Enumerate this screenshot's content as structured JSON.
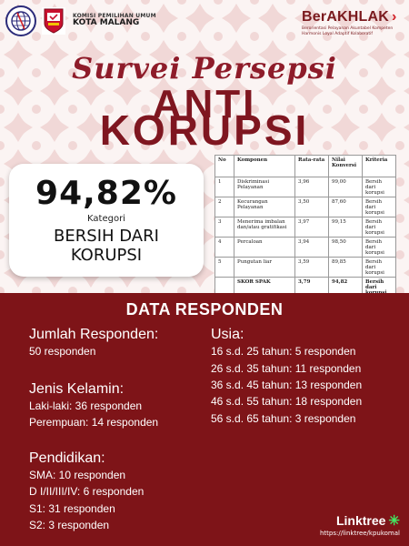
{
  "header": {
    "org_line1": "KOMISI PEMILIHAN UMUM",
    "org_line2": "KOTA MALANG",
    "brand": "BerAKHLAK",
    "brand_sub_line1": "Berorientasi Pelayanan Akuntabel Kompeten",
    "brand_sub_line2": "Harmonis Loyal Adaptif Kolaboratif",
    "icons": [
      "globe-logo-icon",
      "kpu-logo-icon",
      "chevron-right-icon"
    ]
  },
  "title": {
    "script": "Survei Persepsi",
    "line1": "ANTI",
    "line2": "KORUPSI"
  },
  "score": {
    "value": "94,82%",
    "category_label": "Kategori",
    "result_line1": "BERSIH DARI",
    "result_line2": "KORUPSI"
  },
  "table": {
    "headers": [
      "No",
      "Komponen",
      "Rata-rata",
      "Nilai Konversi",
      "Kriteria"
    ],
    "rows": [
      {
        "no": "1",
        "komponen": "Diskriminasi Pelayanan",
        "rata": "3,96",
        "nilai": "99,00",
        "kriteria": "Bersih dari korupsi"
      },
      {
        "no": "2",
        "komponen": "Kecurangan Pelayanan",
        "rata": "3,50",
        "nilai": "87,60",
        "kriteria": "Bersih dari korupsi"
      },
      {
        "no": "3",
        "komponen": "Menerima imbalan dan/atau gratifikasi",
        "rata": "3,97",
        "nilai": "99,15",
        "kriteria": "Bersih dari korupsi"
      },
      {
        "no": "4",
        "komponen": "Percaloan",
        "rata": "3,94",
        "nilai": "98,50",
        "kriteria": "Bersih dari korupsi"
      },
      {
        "no": "5",
        "komponen": "Pungutan liar",
        "rata": "3,59",
        "nilai": "89,85",
        "kriteria": "Bersih dari korupsi"
      }
    ],
    "total": {
      "label": "SKOR SPAK",
      "rata": "3,79",
      "nilai": "94,82",
      "kriteria": "Bersih dari korupsi"
    }
  },
  "responden": {
    "title": "DATA RESPONDEN",
    "jumlah_head": "Jumlah Responden",
    "jumlah_colon": ":",
    "jumlah_value": "50 responden",
    "kelamin_head": "Jenis Kelamin:",
    "kelamin_items": [
      "Laki-laki: 36 responden",
      "Perempuan: 14 responden"
    ],
    "pendidikan_head": "Pendidikan:",
    "pendidikan_items": [
      "SMA: 10 responden",
      "D I/II/III/IV: 6 responden",
      "S1: 31 responden",
      "S2: 3 responden"
    ],
    "usia_head": "Usia:",
    "usia_items": [
      "16 s.d. 25 tahun: 5 responden",
      "26 s.d. 35 tahun: 11 responden",
      "36 s.d. 45 tahun: 13 responden",
      "46 s.d. 55 tahun: 18 responden",
      "56 s.d. 65 tahun: 3 responden"
    ]
  },
  "linktree": {
    "name": "Linktree",
    "url": "https://linktree/kpukomal"
  },
  "colors": {
    "maroon": "#7e1418",
    "title_red": "#8e1c2a",
    "accent_green": "#43e660"
  }
}
